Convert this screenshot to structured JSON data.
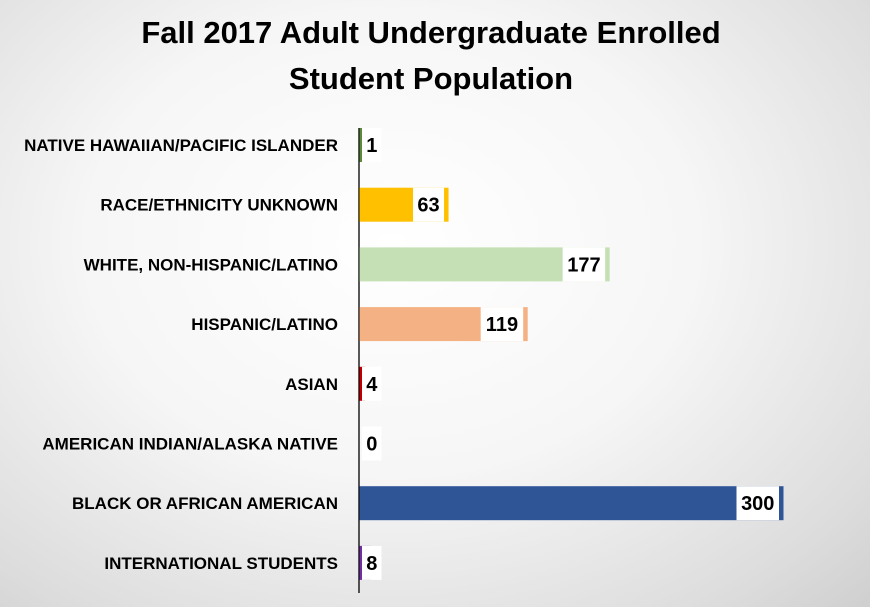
{
  "chart_data": {
    "type": "bar",
    "orientation": "horizontal",
    "title_lines": [
      "Fall 2017 Adult Undergraduate Enrolled",
      "Student Population"
    ],
    "categories": [
      "NATIVE HAWAIIAN/PACIFIC ISLANDER",
      "RACE/ETHNICITY UNKNOWN",
      "WHITE, NON-HISPANIC/LATINO",
      "HISPANIC/LATINO",
      "ASIAN",
      "AMERICAN INDIAN/ALASKA NATIVE",
      "BLACK OR AFRICAN AMERICAN",
      "INTERNATIONAL STUDENTS"
    ],
    "values": [
      1,
      63,
      177,
      119,
      4,
      0,
      300,
      8
    ],
    "colors": [
      "#5a8a3a",
      "#ffc000",
      "#c5e0b4",
      "#f4b183",
      "#c00000",
      "#7f7f7f",
      "#2f5597",
      "#7030a0"
    ],
    "xlim": [
      0,
      300
    ],
    "grid": false,
    "legend": "none"
  }
}
